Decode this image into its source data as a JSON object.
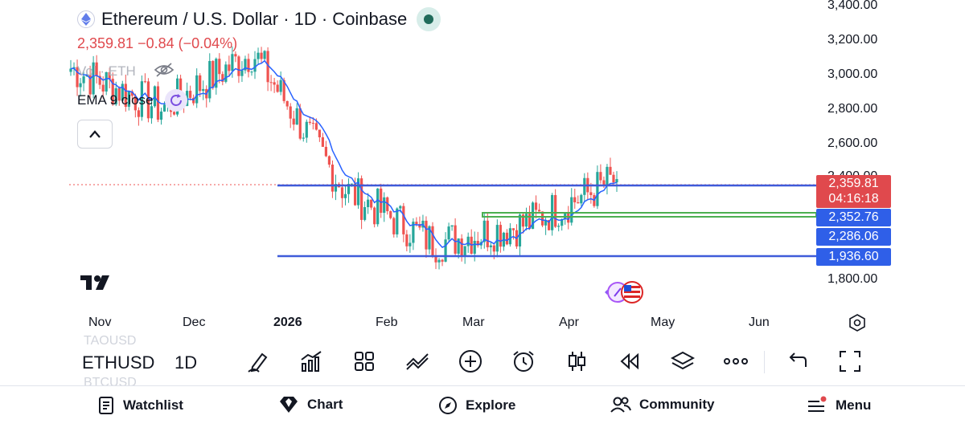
{
  "legend": {
    "title": "Ethereum / U.S. Dollar · 1D · Coinbase",
    "price_line": "2,359.81 −0.84 (−0.04%)",
    "volume_label": "Vol · ETH",
    "ema_label": "EMA 9 close"
  },
  "price_axis": {
    "labels": [
      "3,400.00",
      "3,200.00",
      "3,000.00",
      "2,800.00",
      "2,600.00",
      "2,400.00",
      "1,800.00"
    ],
    "current_price": "2,359.81",
    "countdown": "04:16:18",
    "level_tags": [
      "2,352.76",
      "2,286.06",
      "1,936.60"
    ]
  },
  "time_axis": {
    "labels": [
      "Nov",
      "Dec",
      "2026",
      "Feb",
      "Mar",
      "Apr",
      "May",
      "Jun"
    ]
  },
  "toolbar": {
    "symbol": "ETHUSD",
    "interval": "1D",
    "ghost_above": "TAOUSD",
    "ghost_below": "BTCUSD"
  },
  "nav": {
    "watchlist": "Watchlist",
    "chart": "Chart",
    "explore": "Explore",
    "community": "Community",
    "menu": "Menu"
  },
  "colors": {
    "up": "#26a69a",
    "down": "#ef5350",
    "ema": "#2962ff",
    "hline_blue": "#3f5bd9",
    "zone_green": "#4caf50",
    "price_tag_red": "#e0494d",
    "level_tag_blue": "#2f5fe8"
  },
  "chart_data": {
    "type": "candlestick",
    "symbol": "ETHUSD",
    "exchange": "Coinbase",
    "interval": "1D",
    "ylim": [
      1700,
      3450
    ],
    "indicators": [
      "Volume (hidden)",
      "EMA 9 close"
    ],
    "last_price": 2359.81,
    "change": -0.84,
    "change_pct": -0.04,
    "horizontal_lines": [
      2360,
      1936.6
    ],
    "support_zone": [
      2352.76,
      2286.06
    ],
    "close_path": [
      {
        "month": "Nov",
        "close": 3050
      },
      {
        "month": "Dec",
        "close": 2800
      },
      {
        "month": "2026",
        "close": 3150
      },
      {
        "month": "Feb",
        "close": 2300
      },
      {
        "month": "Mar",
        "close": 1960
      },
      {
        "month": "Apr",
        "close": 2080
      },
      {
        "month": "Apr-end",
        "close": 2360
      }
    ]
  }
}
